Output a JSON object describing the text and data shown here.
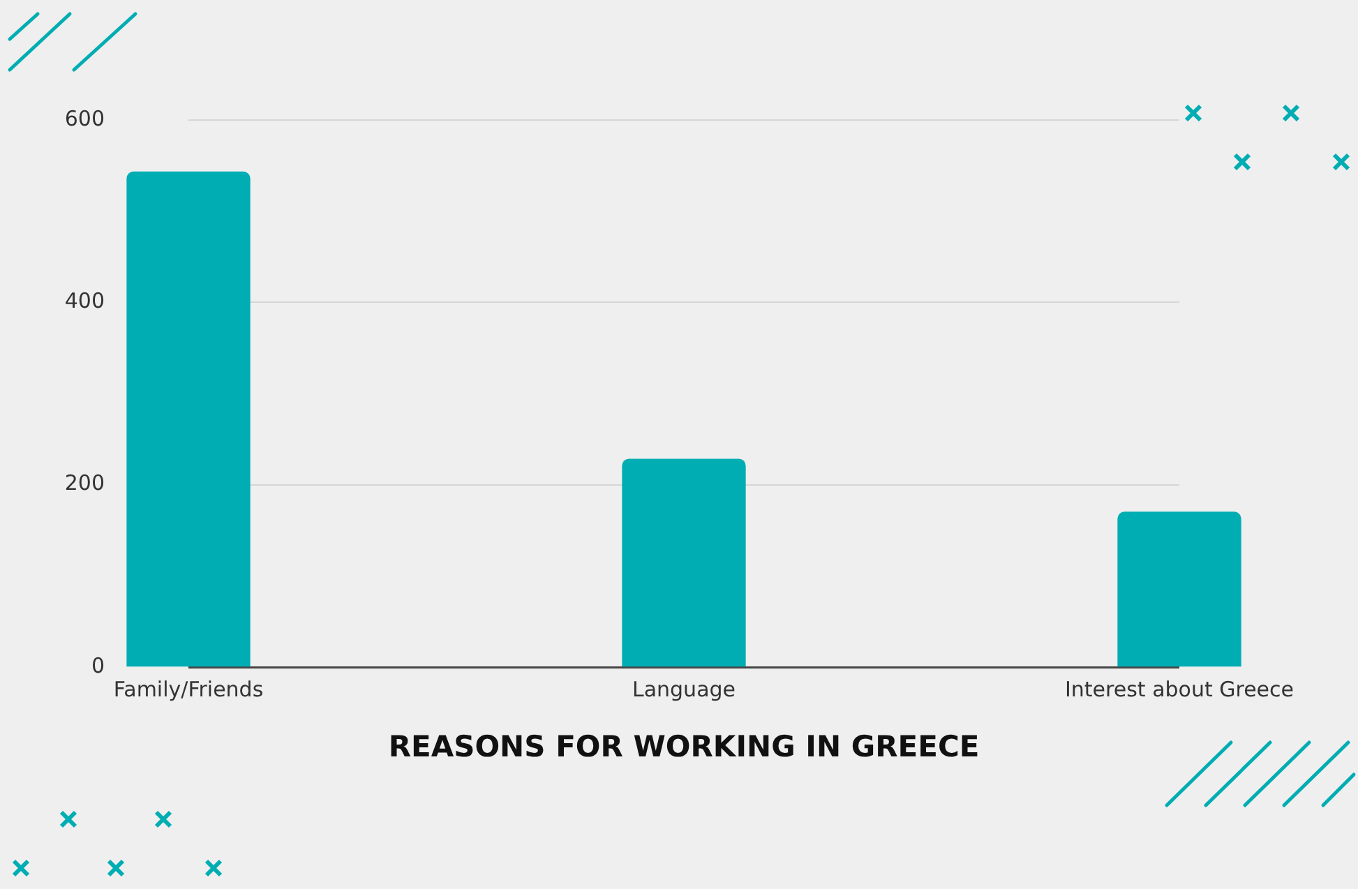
{
  "chart_data": {
    "type": "bar",
    "xlabel": "REASONS FOR WORKING IN GREECE",
    "categories": [
      "Family/Friends",
      "Language",
      "Interest about Greece"
    ],
    "values": [
      543,
      228,
      170
    ],
    "color": "#00adb2",
    "ylim": [
      0,
      600
    ],
    "yticks": [
      0,
      200,
      400,
      600
    ],
    "grid": "y",
    "legend": false
  }
}
